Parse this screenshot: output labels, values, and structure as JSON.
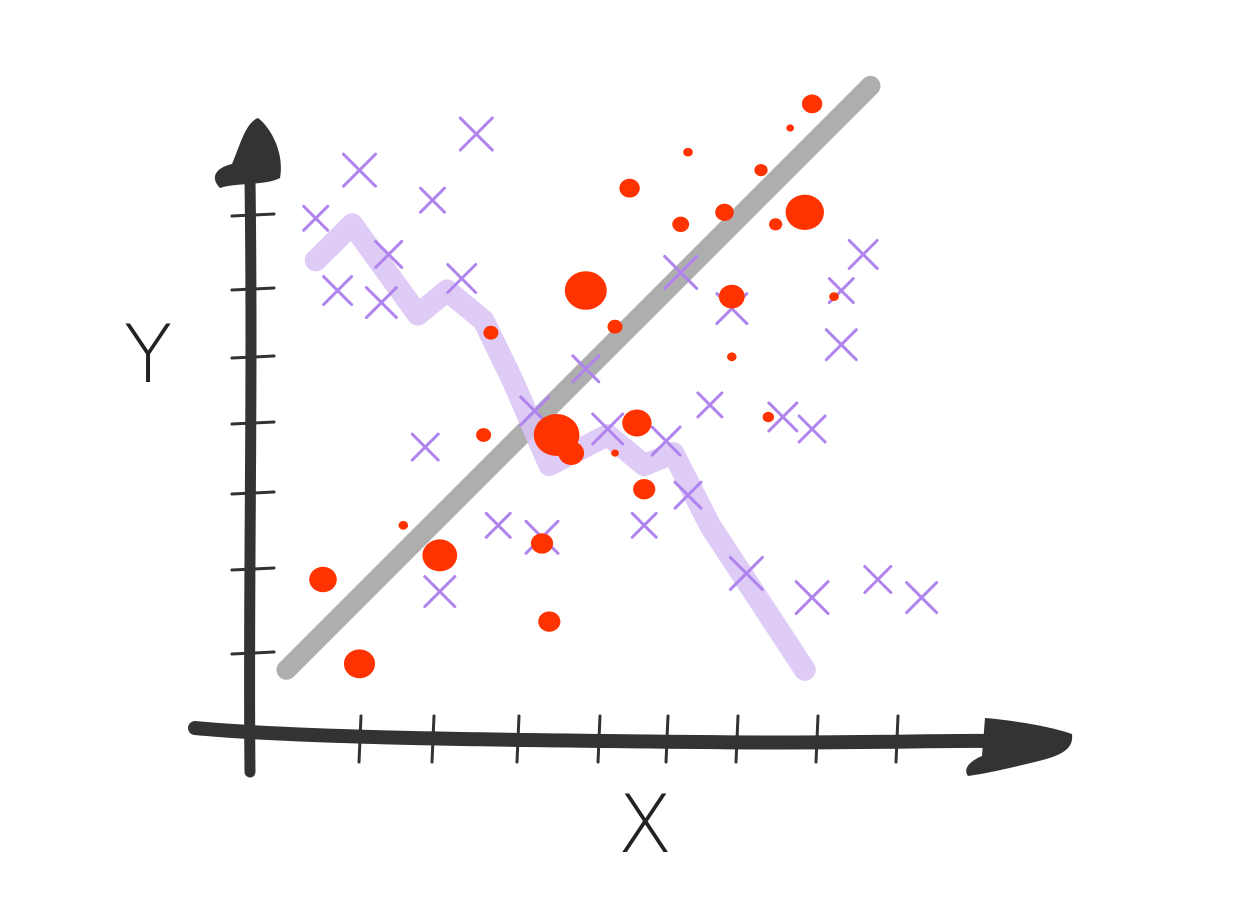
{
  "chart_data": {
    "type": "scatter",
    "style": "hand-drawn sketch",
    "xlabel": "X",
    "ylabel": "Y",
    "xlim": [
      0,
      10
    ],
    "ylim": [
      0,
      10
    ],
    "x_tick_count": 8,
    "y_tick_count": 8,
    "grid": false,
    "legend": "none",
    "colors": {
      "axis": "#333333",
      "dots": "#ff3300",
      "crosses": "#b084ee",
      "trend_up": "#aaaaaa",
      "trend_down": "#d8c2f5"
    },
    "series": [
      {
        "kind": "dots",
        "marker": "filled-circle",
        "points": [
          [
            1.0,
            2.5,
            1.2
          ],
          [
            1.5,
            1.1,
            1.4
          ],
          [
            2.1,
            3.4,
            0.2
          ],
          [
            2.6,
            2.9,
            1.6
          ],
          [
            3.2,
            4.9,
            0.5
          ],
          [
            3.3,
            6.6,
            0.5
          ],
          [
            4.0,
            3.1,
            0.9
          ],
          [
            4.1,
            1.8,
            0.9
          ],
          [
            4.2,
            4.9,
            2.2
          ],
          [
            4.4,
            4.6,
            1.1
          ],
          [
            4.6,
            7.3,
            2.0
          ],
          [
            5.0,
            4.6,
            0.1
          ],
          [
            5.0,
            6.7,
            0.5
          ],
          [
            5.2,
            9.0,
            0.8
          ],
          [
            5.3,
            5.1,
            1.3
          ],
          [
            5.4,
            4.0,
            0.9
          ],
          [
            5.9,
            8.4,
            0.6
          ],
          [
            6.0,
            9.6,
            0.2
          ],
          [
            6.5,
            8.6,
            0.7
          ],
          [
            6.6,
            7.2,
            1.1
          ],
          [
            6.6,
            6.2,
            0.2
          ],
          [
            7.0,
            9.3,
            0.4
          ],
          [
            7.2,
            8.4,
            0.4
          ],
          [
            7.1,
            5.2,
            0.3
          ],
          [
            7.4,
            10.0,
            0.1
          ],
          [
            7.7,
            10.4,
            0.8
          ],
          [
            7.6,
            8.6,
            1.8
          ],
          [
            8.0,
            7.2,
            0.2
          ]
        ]
      },
      {
        "kind": "crosses",
        "marker": "x",
        "points": [
          [
            0.9,
            8.5
          ],
          [
            1.2,
            7.3
          ],
          [
            1.5,
            9.3
          ],
          [
            1.9,
            7.9
          ],
          [
            1.8,
            7.1
          ],
          [
            2.5,
            8.8
          ],
          [
            2.9,
            7.5
          ],
          [
            3.1,
            9.9
          ],
          [
            2.4,
            4.7
          ],
          [
            2.6,
            2.3
          ],
          [
            3.4,
            3.4
          ],
          [
            3.9,
            5.3
          ],
          [
            4.0,
            3.2
          ],
          [
            4.6,
            6.0
          ],
          [
            4.9,
            5.0
          ],
          [
            5.4,
            3.4
          ],
          [
            5.7,
            4.8
          ],
          [
            5.9,
            7.6
          ],
          [
            6.0,
            3.9
          ],
          [
            6.6,
            7.0
          ],
          [
            6.3,
            5.4
          ],
          [
            7.3,
            5.2
          ],
          [
            6.8,
            2.6
          ],
          [
            7.7,
            5.0
          ],
          [
            8.1,
            6.4
          ],
          [
            8.1,
            7.3
          ],
          [
            8.4,
            7.9
          ],
          [
            7.7,
            2.2
          ],
          [
            8.6,
            2.5
          ],
          [
            9.2,
            2.2
          ]
        ]
      },
      {
        "kind": "trend-up",
        "marker": "thick-line",
        "points": [
          [
            0.5,
            1.0
          ],
          [
            8.5,
            10.7
          ]
        ]
      },
      {
        "kind": "trend-down",
        "marker": "thick-line",
        "points": [
          [
            0.9,
            7.8
          ],
          [
            1.4,
            8.4
          ],
          [
            2.3,
            6.9
          ],
          [
            2.7,
            7.3
          ],
          [
            3.2,
            6.8
          ],
          [
            3.6,
            5.8
          ],
          [
            4.1,
            4.4
          ],
          [
            4.9,
            4.9
          ],
          [
            5.4,
            4.4
          ],
          [
            5.8,
            4.6
          ],
          [
            6.3,
            3.4
          ],
          [
            7.6,
            1.0
          ]
        ]
      }
    ]
  }
}
